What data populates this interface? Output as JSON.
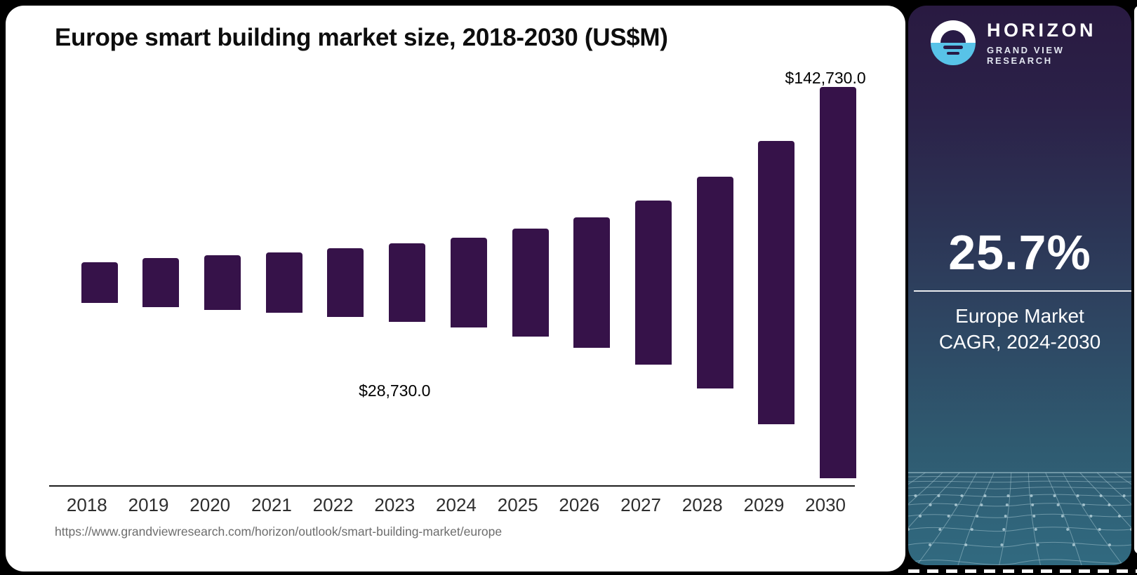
{
  "card": {
    "title": "Europe smart building market size, 2018-2030 (US$M)",
    "source_url": "https://www.grandviewresearch.com/horizon/outlook/smart-building-market/europe"
  },
  "chart_data": {
    "type": "bar",
    "title": "Europe smart building market size, 2018-2030 (US$M)",
    "categories": [
      "2018",
      "2019",
      "2020",
      "2021",
      "2022",
      "2023",
      "2024",
      "2025",
      "2026",
      "2027",
      "2028",
      "2029",
      "2030"
    ],
    "values": [
      14600,
      18000,
      20000,
      22000,
      25100,
      28730,
      32900,
      39400,
      47600,
      59900,
      77100,
      103400,
      142730
    ],
    "value_labels": {
      "2023": "$28,730.0",
      "2030": "$142,730.0"
    },
    "xlabel": "",
    "ylabel": "US$M",
    "ylim": [
      0,
      145000
    ],
    "grid": false,
    "legend": false,
    "bar_color": "#361249",
    "axis_color": "#1d1d1d"
  },
  "panel": {
    "brand": {
      "name": "HORIZON",
      "subtitle": "GRAND VIEW RESEARCH",
      "logo_icon": "horizon-sun-circle-icon",
      "logo_blue": "#58c3e8",
      "logo_dark": "#281a45"
    },
    "stat": {
      "value": "25.7%",
      "caption_line1": "Europe Market",
      "caption_line2": "CAGR, 2024-2030"
    },
    "colors": {
      "gradient_top": "#291a41",
      "gradient_bottom": "#316a80",
      "mesh_line": "#a9c9d4"
    }
  }
}
